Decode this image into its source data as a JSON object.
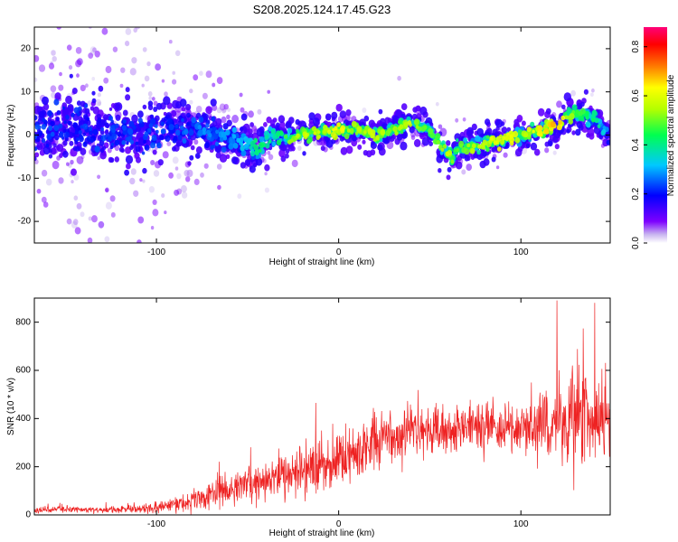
{
  "title": "S208.2025.124.17.45.G23",
  "chart_data": [
    {
      "type": "heatmap",
      "title": "S208.2025.124.17.45.G23",
      "xlabel": "Height of straight line (km)",
      "ylabel": "Frequency (Hz)",
      "xlim": [
        -167,
        149
      ],
      "ylim": [
        -25,
        25
      ],
      "x_ticks": [
        -100,
        0,
        100
      ],
      "y_ticks": [
        -20,
        -10,
        0,
        10,
        20
      ],
      "colorbar": {
        "label": "Normalized spectral amplitude",
        "range": [
          0,
          0.88
        ],
        "ticks": [
          0.0,
          0.2,
          0.4,
          0.6,
          0.8
        ],
        "colormap": [
          "#ffffff",
          "#c8b4f0",
          "#7d00ff",
          "#0000ff",
          "#00c8ff",
          "#00ff50",
          "#b4ff00",
          "#ffff00",
          "#ff7800",
          "#ff0000",
          "#ff0078"
        ]
      },
      "ridge": {
        "x": [
          -165,
          -150,
          -130,
          -110,
          -90,
          -75,
          -60,
          -50,
          -45,
          -40,
          -35,
          -30,
          -20,
          -10,
          0,
          10,
          20,
          30,
          40,
          45,
          50,
          55,
          60,
          62,
          65,
          70,
          80,
          90,
          100,
          110,
          120,
          125,
          130,
          140,
          148
        ],
        "y": [
          1,
          2,
          1,
          0,
          2,
          1,
          -1,
          -2,
          -4,
          -1,
          0,
          -1,
          0,
          1,
          1,
          1,
          0,
          1,
          3,
          2,
          1,
          -2,
          -4,
          -6,
          -3,
          -3,
          -2,
          -1,
          0,
          1,
          2,
          4,
          5,
          4,
          0
        ],
        "peak_amplitude": [
          0.25,
          0.25,
          0.25,
          0.25,
          0.25,
          0.3,
          0.3,
          0.35,
          0.45,
          0.45,
          0.4,
          0.5,
          0.6,
          0.6,
          0.65,
          0.55,
          0.6,
          0.55,
          0.6,
          0.5,
          0.5,
          0.55,
          0.6,
          0.55,
          0.5,
          0.55,
          0.6,
          0.65,
          0.6,
          0.65,
          0.7,
          0.6,
          0.5,
          0.45,
          0.3
        ]
      }
    },
    {
      "type": "line",
      "xlabel": "Height of straight line (km)",
      "ylabel": "SNR (10 * v/v)",
      "xlim": [
        -167,
        149
      ],
      "ylim": [
        0,
        900
      ],
      "x_ticks": [
        -100,
        0,
        100
      ],
      "y_ticks": [
        0,
        200,
        400,
        600,
        800
      ],
      "color": "#ee2222",
      "series": [
        {
          "x": [
            -167,
            -150,
            -130,
            -110,
            -100,
            -90,
            -80,
            -70,
            -60,
            -50,
            -40,
            -30,
            -20,
            -10,
            0,
            10,
            20,
            30,
            40,
            50,
            60,
            70,
            80,
            90,
            100,
            110,
            120,
            130,
            140,
            149
          ],
          "mean": [
            20,
            22,
            22,
            25,
            30,
            45,
            60,
            80,
            100,
            130,
            150,
            170,
            190,
            210,
            230,
            260,
            300,
            320,
            340,
            350,
            360,
            360,
            370,
            360,
            360,
            370,
            380,
            420,
            400,
            380
          ],
          "spread": [
            12,
            12,
            12,
            15,
            18,
            30,
            45,
            50,
            60,
            70,
            80,
            80,
            90,
            100,
            110,
            110,
            110,
            120,
            110,
            100,
            100,
            100,
            100,
            100,
            110,
            120,
            140,
            200,
            180,
            150
          ]
        }
      ]
    }
  ]
}
